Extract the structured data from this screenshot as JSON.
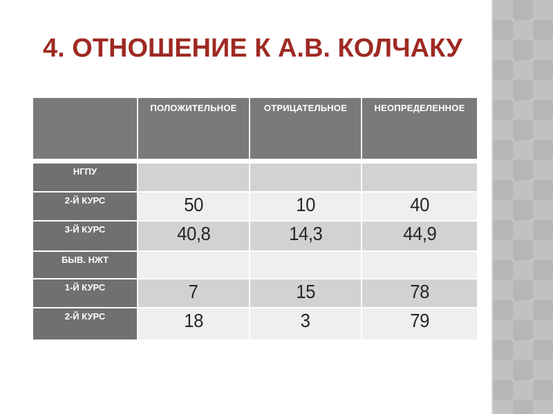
{
  "slide": {
    "title": "4. ОТНОШЕНИЕ К А.В. КОЛЧАКУ"
  },
  "table": {
    "corner_label": "",
    "columns": [
      "ПОЛОЖИТЕЛЬНОЕ",
      "ОТРИЦАТЕЛЬНОЕ",
      "НЕОПРЕДЕЛЕННОЕ"
    ],
    "rows": [
      {
        "label": "НГПУ",
        "values": [
          "",
          "",
          ""
        ]
      },
      {
        "label": "2-Й КУРС",
        "values": [
          "50",
          "10",
          "40"
        ]
      },
      {
        "label": "3-Й КУРС",
        "values": [
          "40,8",
          "14,3",
          "44,9"
        ]
      },
      {
        "label": "БЫВ. НЖТ",
        "values": [
          "",
          "",
          ""
        ]
      },
      {
        "label": "1-Й КУРС",
        "values": [
          "7",
          "15",
          "78"
        ]
      },
      {
        "label": "2-Й КУРС",
        "values": [
          "18",
          "3",
          "79"
        ]
      }
    ]
  },
  "colors": {
    "slide_bg": "#ffffff",
    "title": "#9e2a23",
    "header_bg": "#7a7a7a",
    "header_text": "#ffffff",
    "label_bg": "#707070",
    "band_dark": "#d2d2d2",
    "band_light": "#efefef",
    "cell_text": "#262626",
    "strip_base": "#c1c1c1",
    "strip_diamond": "#b6b6b6"
  }
}
